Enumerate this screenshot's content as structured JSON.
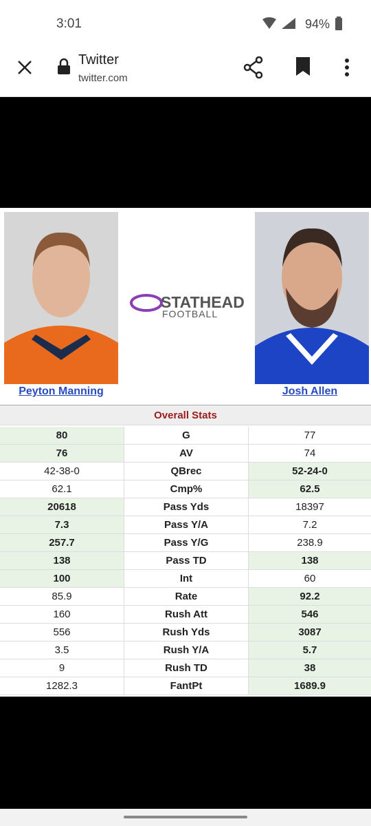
{
  "status_bar": {
    "time": "3:01",
    "battery": "94%"
  },
  "browser_bar": {
    "title": "Twitter",
    "url": "twitter.com"
  },
  "card": {
    "logo": {
      "line1": "STATHEAD",
      "line2": "FOOTBALL"
    },
    "players": [
      "Peyton Manning",
      "Josh Allen"
    ],
    "section": "Overall Stats",
    "rows": [
      {
        "stat": "G",
        "left": "80",
        "right": "77",
        "highlight": "left"
      },
      {
        "stat": "AV",
        "left": "76",
        "right": "74",
        "highlight": "left"
      },
      {
        "stat": "QBrec",
        "left": "42-38-0",
        "right": "52-24-0",
        "highlight": "right"
      },
      {
        "stat": "Cmp%",
        "left": "62.1",
        "right": "62.5",
        "highlight": "right"
      },
      {
        "stat": "Pass Yds",
        "left": "20618",
        "right": "18397",
        "highlight": "left"
      },
      {
        "stat": "Pass Y/A",
        "left": "7.3",
        "right": "7.2",
        "highlight": "left"
      },
      {
        "stat": "Pass Y/G",
        "left": "257.7",
        "right": "238.9",
        "highlight": "left"
      },
      {
        "stat": "Pass TD",
        "left": "138",
        "right": "138",
        "highlight": "both"
      },
      {
        "stat": "Int",
        "left": "100",
        "right": "60",
        "highlight": "left"
      },
      {
        "stat": "Rate",
        "left": "85.9",
        "right": "92.2",
        "highlight": "right"
      },
      {
        "stat": "Rush Att",
        "left": "160",
        "right": "546",
        "highlight": "right"
      },
      {
        "stat": "Rush Yds",
        "left": "556",
        "right": "3087",
        "highlight": "right"
      },
      {
        "stat": "Rush Y/A",
        "left": "3.5",
        "right": "5.7",
        "highlight": "right"
      },
      {
        "stat": "Rush TD",
        "left": "9",
        "right": "38",
        "highlight": "right"
      },
      {
        "stat": "FantPt",
        "left": "1282.3",
        "right": "1689.9",
        "highlight": "right"
      }
    ]
  }
}
